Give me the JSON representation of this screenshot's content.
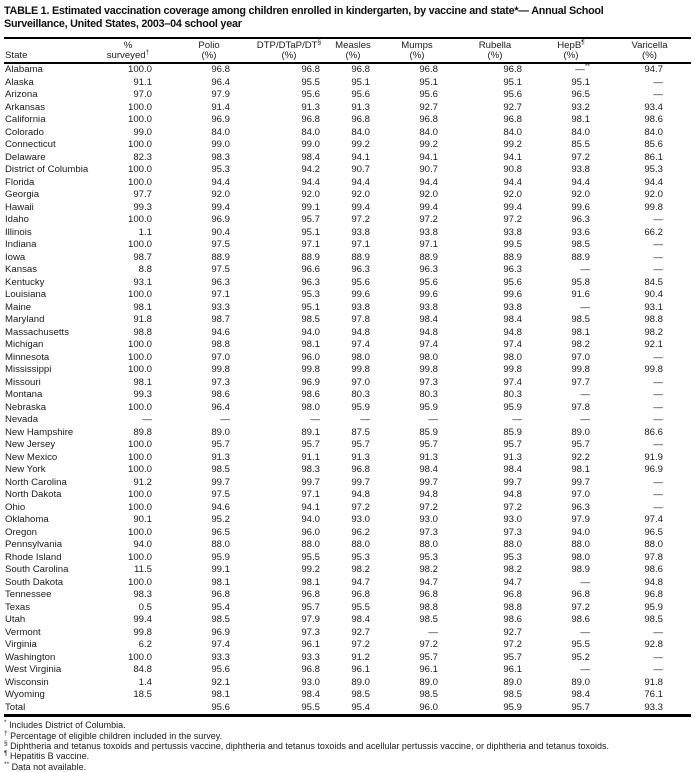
{
  "title": {
    "lines": [
      "TABLE 1. Estimated vaccination coverage among children enrolled in kindergarten, by vaccine and state*— Annual School",
      "Surveillance, United States, 2003–04 school year"
    ]
  },
  "table": {
    "missing_symbol": "—",
    "columns": [
      {
        "id": "state",
        "l1": "",
        "s1": "",
        "l2": "State",
        "s2": ""
      },
      {
        "id": "pct-surveyed",
        "l1": "%",
        "s1": "",
        "l2": "surveyed",
        "s2": "†"
      },
      {
        "id": "polio",
        "l1": "Polio",
        "s1": "",
        "l2": "(%)",
        "s2": ""
      },
      {
        "id": "dtp-dtap-dt",
        "l1": "DTP/DTaP/DT",
        "s1": "§",
        "l2": "(%)",
        "s2": ""
      },
      {
        "id": "measles",
        "l1": "Measles",
        "s1": "",
        "l2": "(%)",
        "s2": ""
      },
      {
        "id": "mumps",
        "l1": "Mumps",
        "s1": "",
        "l2": "(%)",
        "s2": ""
      },
      {
        "id": "rubella",
        "l1": "Rubella",
        "s1": "",
        "l2": "(%)",
        "s2": ""
      },
      {
        "id": "hepb",
        "l1": "HepB",
        "s1": "¶",
        "l2": "(%)",
        "s2": ""
      },
      {
        "id": "varicella",
        "l1": "Varicella",
        "s1": "",
        "l2": "(%)",
        "s2": ""
      }
    ],
    "rows": [
      {
        "state": "Alabama",
        "values": [
          "100.0",
          "96.8",
          "96.8",
          "96.8",
          "96.8",
          "96.8",
          "—**",
          "94.7"
        ]
      },
      {
        "state": "Alaska",
        "values": [
          "91.1",
          "96.4",
          "95.5",
          "95.1",
          "95.1",
          "95.1",
          "95.1",
          "—"
        ]
      },
      {
        "state": "Arizona",
        "values": [
          "97.0",
          "97.9",
          "95.6",
          "95.6",
          "95.6",
          "95.6",
          "96.5",
          "—"
        ]
      },
      {
        "state": "Arkansas",
        "values": [
          "100.0",
          "91.4",
          "91.3",
          "91.3",
          "92.7",
          "92.7",
          "93.2",
          "93.4"
        ]
      },
      {
        "state": "California",
        "values": [
          "100.0",
          "96.9",
          "96.8",
          "96.8",
          "96.8",
          "96.8",
          "98.1",
          "98.6"
        ]
      },
      {
        "state": "Colorado",
        "values": [
          "99.0",
          "84.0",
          "84.0",
          "84.0",
          "84.0",
          "84.0",
          "84.0",
          "84.0"
        ]
      },
      {
        "state": "Connecticut",
        "values": [
          "100.0",
          "99.0",
          "99.0",
          "99.2",
          "99.2",
          "99.2",
          "85.5",
          "85.6"
        ]
      },
      {
        "state": "Delaware",
        "values": [
          "82.3",
          "98.3",
          "98.4",
          "94.1",
          "94.1",
          "94.1",
          "97.2",
          "86.1"
        ]
      },
      {
        "state": "District of Columbia",
        "values": [
          "100.0",
          "95.3",
          "94.2",
          "90.7",
          "90.7",
          "90.8",
          "93.8",
          "95.3"
        ]
      },
      {
        "state": "Florida",
        "values": [
          "100.0",
          "94.4",
          "94.4",
          "94.4",
          "94.4",
          "94.4",
          "94.4",
          "94.4"
        ]
      },
      {
        "state": "Georgia",
        "values": [
          "97.7",
          "92.0",
          "92.0",
          "92.0",
          "92.0",
          "92.0",
          "92.0",
          "92.0"
        ]
      },
      {
        "state": "Hawaii",
        "values": [
          "99.3",
          "99.4",
          "99.1",
          "99.4",
          "99.4",
          "99.4",
          "99.6",
          "99.8"
        ]
      },
      {
        "state": "Idaho",
        "values": [
          "100.0",
          "96.9",
          "95.7",
          "97.2",
          "97.2",
          "97.2",
          "96.3",
          "—"
        ]
      },
      {
        "state": "Illinois",
        "values": [
          "1.1",
          "90.4",
          "95.1",
          "93.8",
          "93.8",
          "93.8",
          "93.6",
          "66.2"
        ]
      },
      {
        "state": "Indiana",
        "values": [
          "100.0",
          "97.5",
          "97.1",
          "97.1",
          "97.1",
          "99.5",
          "98.5",
          "—"
        ]
      },
      {
        "state": "Iowa",
        "values": [
          "98.7",
          "88.9",
          "88.9",
          "88.9",
          "88.9",
          "88.9",
          "88.9",
          "—"
        ]
      },
      {
        "state": "Kansas",
        "values": [
          "8.8",
          "97.5",
          "96.6",
          "96.3",
          "96.3",
          "96.3",
          "—",
          "—"
        ]
      },
      {
        "state": "Kentucky",
        "values": [
          "93.1",
          "96.3",
          "96.3",
          "95.6",
          "95.6",
          "95.6",
          "95.8",
          "84.5"
        ]
      },
      {
        "state": "Louisiana",
        "values": [
          "100.0",
          "97.1",
          "95.3",
          "99.6",
          "99.6",
          "99.6",
          "91.6",
          "90.4"
        ]
      },
      {
        "state": "Maine",
        "values": [
          "98.1",
          "93.3",
          "95.1",
          "93.8",
          "93.8",
          "93.8",
          "—",
          "93.1"
        ]
      },
      {
        "state": "Maryland",
        "values": [
          "91.8",
          "98.7",
          "98.5",
          "97.8",
          "98.4",
          "98.4",
          "98.5",
          "98.8"
        ]
      },
      {
        "state": "Massachusetts",
        "values": [
          "98.8",
          "94.6",
          "94.0",
          "94.8",
          "94.8",
          "94.8",
          "98.1",
          "98.2"
        ]
      },
      {
        "state": "Michigan",
        "values": [
          "100.0",
          "98.8",
          "98.1",
          "97.4",
          "97.4",
          "97.4",
          "98.2",
          "92.1"
        ]
      },
      {
        "state": "Minnesota",
        "values": [
          "100.0",
          "97.0",
          "96.0",
          "98.0",
          "98.0",
          "98.0",
          "97.0",
          "—"
        ]
      },
      {
        "state": "Mississippi",
        "values": [
          "100.0",
          "99.8",
          "99.8",
          "99.8",
          "99.8",
          "99.8",
          "99.8",
          "99.8"
        ]
      },
      {
        "state": "Missouri",
        "values": [
          "98.1",
          "97.3",
          "96.9",
          "97.0",
          "97.3",
          "97.4",
          "97.7",
          "—"
        ]
      },
      {
        "state": "Montana",
        "values": [
          "99.3",
          "98.6",
          "98.6",
          "80.3",
          "80.3",
          "80.3",
          "—",
          "—"
        ]
      },
      {
        "state": "Nebraska",
        "values": [
          "100.0",
          "96.4",
          "98.0",
          "95.9",
          "95.9",
          "95.9",
          "97.8",
          "—"
        ]
      },
      {
        "state": "Nevada",
        "values": [
          "—",
          "—",
          "—",
          "—",
          "—",
          "—",
          "—",
          "—"
        ]
      },
      {
        "state": "New Hampshire",
        "values": [
          "89.8",
          "89.0",
          "89.1",
          "87.5",
          "85.9",
          "85.9",
          "89.0",
          "86.6"
        ]
      },
      {
        "state": "New Jersey",
        "values": [
          "100.0",
          "95.7",
          "95.7",
          "95.7",
          "95.7",
          "95.7",
          "95.7",
          "—"
        ]
      },
      {
        "state": "New Mexico",
        "values": [
          "100.0",
          "91.3",
          "91.1",
          "91.3",
          "91.3",
          "91.3",
          "92.2",
          "91.9"
        ]
      },
      {
        "state": "New York",
        "values": [
          "100.0",
          "98.5",
          "98.3",
          "96.8",
          "98.4",
          "98.4",
          "98.1",
          "96.9"
        ]
      },
      {
        "state": "North Carolina",
        "values": [
          "91.2",
          "99.7",
          "99.7",
          "99.7",
          "99.7",
          "99.7",
          "99.7",
          "—"
        ]
      },
      {
        "state": "North Dakota",
        "values": [
          "100.0",
          "97.5",
          "97.1",
          "94.8",
          "94.8",
          "94.8",
          "97.0",
          "—"
        ]
      },
      {
        "state": "Ohio",
        "values": [
          "100.0",
          "94.6",
          "94.1",
          "97.2",
          "97.2",
          "97.2",
          "96.3",
          "—"
        ]
      },
      {
        "state": "Oklahoma",
        "values": [
          "90.1",
          "95.2",
          "94.0",
          "93.0",
          "93.0",
          "93.0",
          "97.9",
          "97.4"
        ]
      },
      {
        "state": "Oregon",
        "values": [
          "100.0",
          "96.5",
          "96.0",
          "96.2",
          "97.3",
          "97.3",
          "94.0",
          "96.5"
        ]
      },
      {
        "state": "Pennsylvania",
        "values": [
          "94.0",
          "88.0",
          "88.0",
          "88.0",
          "88.0",
          "88.0",
          "88.0",
          "88.0"
        ]
      },
      {
        "state": "Rhode Island",
        "values": [
          "100.0",
          "95.9",
          "95.5",
          "95.3",
          "95.3",
          "95.3",
          "98.0",
          "97.8"
        ]
      },
      {
        "state": "South Carolina",
        "values": [
          "11.5",
          "99.1",
          "99.2",
          "98.2",
          "98.2",
          "98.2",
          "98.9",
          "98.6"
        ]
      },
      {
        "state": "South Dakota",
        "values": [
          "100.0",
          "98.1",
          "98.1",
          "94.7",
          "94.7",
          "94.7",
          "—",
          "94.8"
        ]
      },
      {
        "state": "Tennessee",
        "values": [
          "98.3",
          "96.8",
          "96.8",
          "96.8",
          "96.8",
          "96.8",
          "96.8",
          "96.8"
        ]
      },
      {
        "state": "Texas",
        "values": [
          "0.5",
          "95.4",
          "95.7",
          "95.5",
          "98.8",
          "98.8",
          "97.2",
          "95.9"
        ]
      },
      {
        "state": "Utah",
        "values": [
          "99.4",
          "98.5",
          "97.9",
          "98.4",
          "98.5",
          "98.6",
          "98.6",
          "98.5"
        ]
      },
      {
        "state": "Vermont",
        "values": [
          "99.8",
          "96.9",
          "97.3",
          "92.7",
          "—",
          "92.7",
          "—",
          "—"
        ]
      },
      {
        "state": "Virginia",
        "values": [
          "6.2",
          "97.4",
          "96.1",
          "97.2",
          "97.2",
          "97.2",
          "95.5",
          "92.8"
        ]
      },
      {
        "state": "Washington",
        "values": [
          "100.0",
          "93.3",
          "93.3",
          "91.2",
          "95.7",
          "95.7",
          "95.2",
          "—"
        ]
      },
      {
        "state": "West Virginia",
        "values": [
          "84.8",
          "95.6",
          "96.8",
          "96.1",
          "96.1",
          "96.1",
          "—",
          "—"
        ]
      },
      {
        "state": "Wisconsin",
        "values": [
          "1.4",
          "92.1",
          "93.0",
          "89.0",
          "89.0",
          "89.0",
          "89.0",
          "91.8"
        ]
      },
      {
        "state": "Wyoming",
        "values": [
          "18.5",
          "98.1",
          "98.4",
          "98.5",
          "98.5",
          "98.5",
          "98.4",
          "76.1"
        ]
      }
    ],
    "total_row": {
      "state": "Total",
      "values": [
        "",
        "95.6",
        "95.5",
        "95.4",
        "96.0",
        "95.9",
        "95.7",
        "93.3"
      ]
    }
  },
  "footnotes": [
    {
      "marker": "*",
      "text": "Includes District of Columbia."
    },
    {
      "marker": "†",
      "text": "Percentage of eligible children included in the survey."
    },
    {
      "marker": "§",
      "text": "Diphtheria and tetanus toxoids and pertussis vaccine, diphtheria and tetanus toxoids and acellular pertussis vaccine, or diphtheria and tetanus toxoids."
    },
    {
      "marker": "¶",
      "text": "Hepatitis B vaccine."
    },
    {
      "marker": "**",
      "text": "Data not available."
    }
  ],
  "colors": {
    "text": "#1b1b1b",
    "rule": "#000000",
    "background": "#ffffff"
  }
}
